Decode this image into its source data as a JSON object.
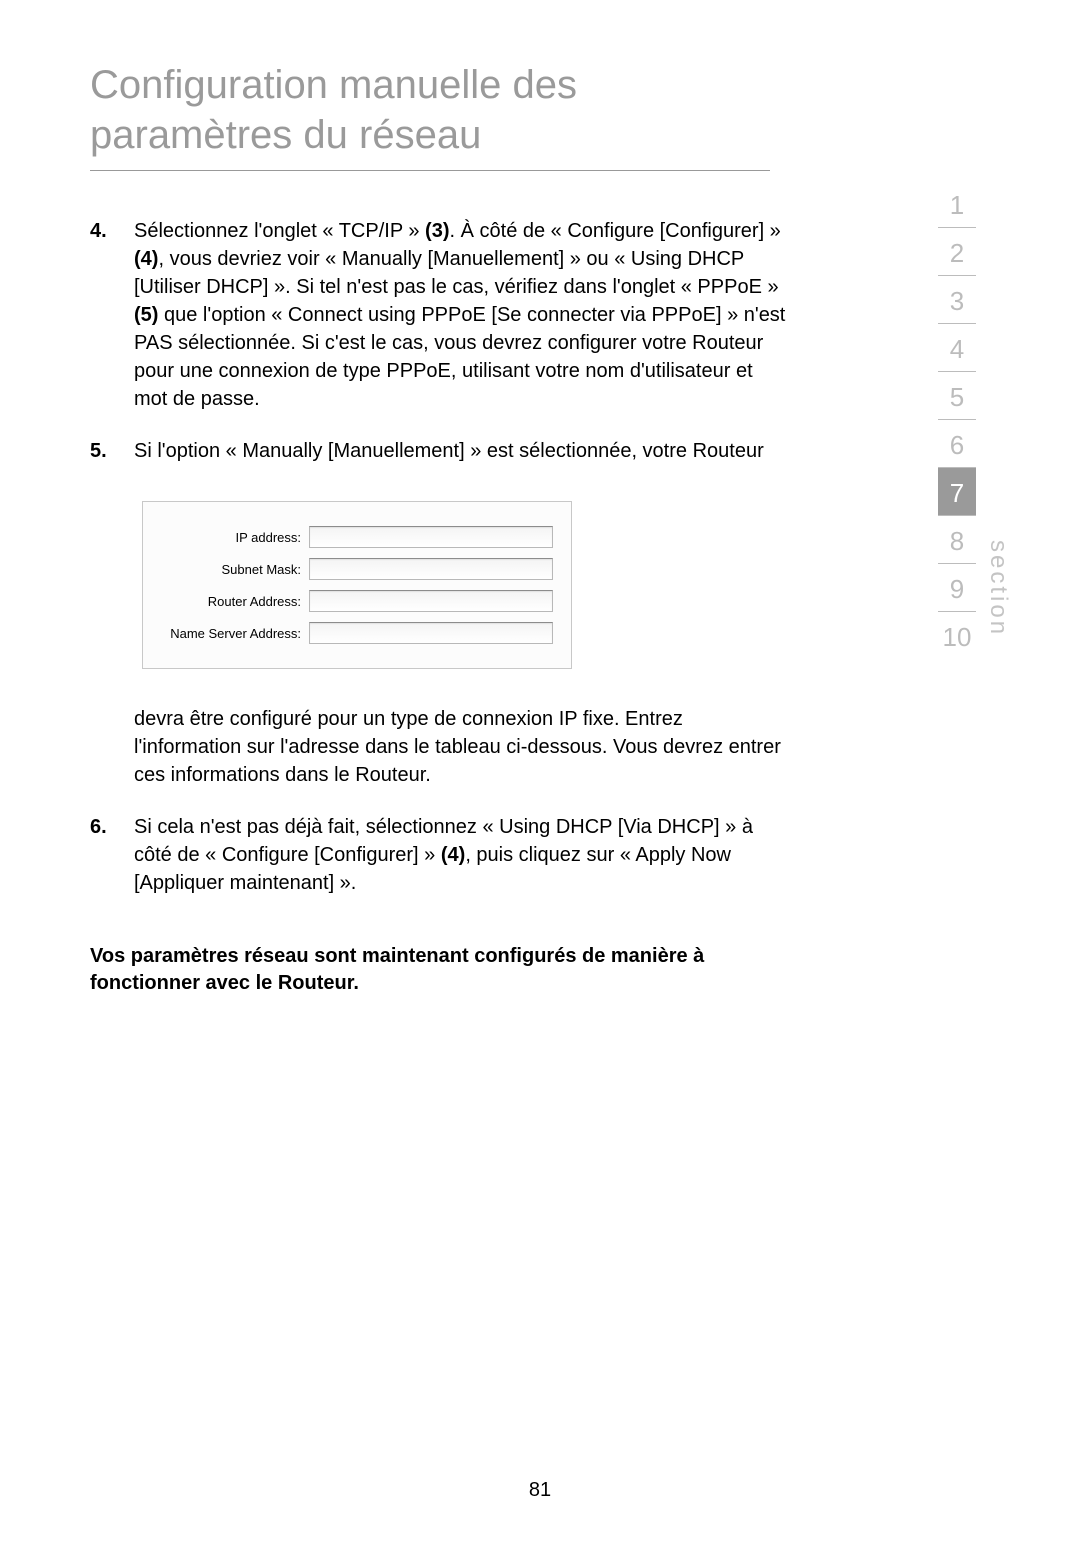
{
  "title": "Configuration manuelle des paramètres du réseau",
  "items": {
    "4": {
      "num": "4.",
      "p1a": "Sélectionnez l'onglet « TCP/IP » ",
      "p1b": "(3)",
      "p1c": ". À côté de « Configure [Configurer] » ",
      "p1d": "(4)",
      "p1e": ", vous devriez voir « Manually [Manuellement] » ou « Using DHCP [Utiliser DHCP] ». Si tel n'est pas le cas, vérifiez dans l'onglet « PPPoE » ",
      "p1f": "(5)",
      "p1g": " que l'option « Connect using PPPoE [Se connecter via PPPoE] » n'est PAS sélectionnée. Si c'est le cas, vous devrez configurer votre Routeur pour une connexion de type PPPoE, utilisant votre nom d'utilisateur et mot de passe."
    },
    "5": {
      "num": "5.",
      "text": "Si l'option « Manually [Manuellement] » est sélectionnée, votre Routeur"
    },
    "para": "devra être configuré pour un type de connexion IP fixe. Entrez l'information sur l'adresse dans le tableau ci-dessous. Vous devrez entrer ces informations dans le Routeur.",
    "6": {
      "num": "6.",
      "p1a": "Si cela n'est pas déjà fait, sélectionnez « Using DHCP [Via DHCP] » à côté de « Configure [Configurer] » ",
      "p1b": "(4)",
      "p1c": ", puis cliquez sur « Apply Now [Appliquer maintenant] »."
    }
  },
  "form": {
    "ip_label": "IP address:",
    "subnet_label": "Subnet Mask:",
    "router_label": "Router Address:",
    "dns_label": "Name Server Address:"
  },
  "closing": "Vos paramètres réseau sont maintenant configurés de manière à fonctionner avec le Routeur.",
  "nav": {
    "label": "section",
    "items": [
      "1",
      "2",
      "3",
      "4",
      "5",
      "6",
      "7",
      "8",
      "9",
      "10"
    ],
    "active_index": 6
  },
  "page_number": "81"
}
